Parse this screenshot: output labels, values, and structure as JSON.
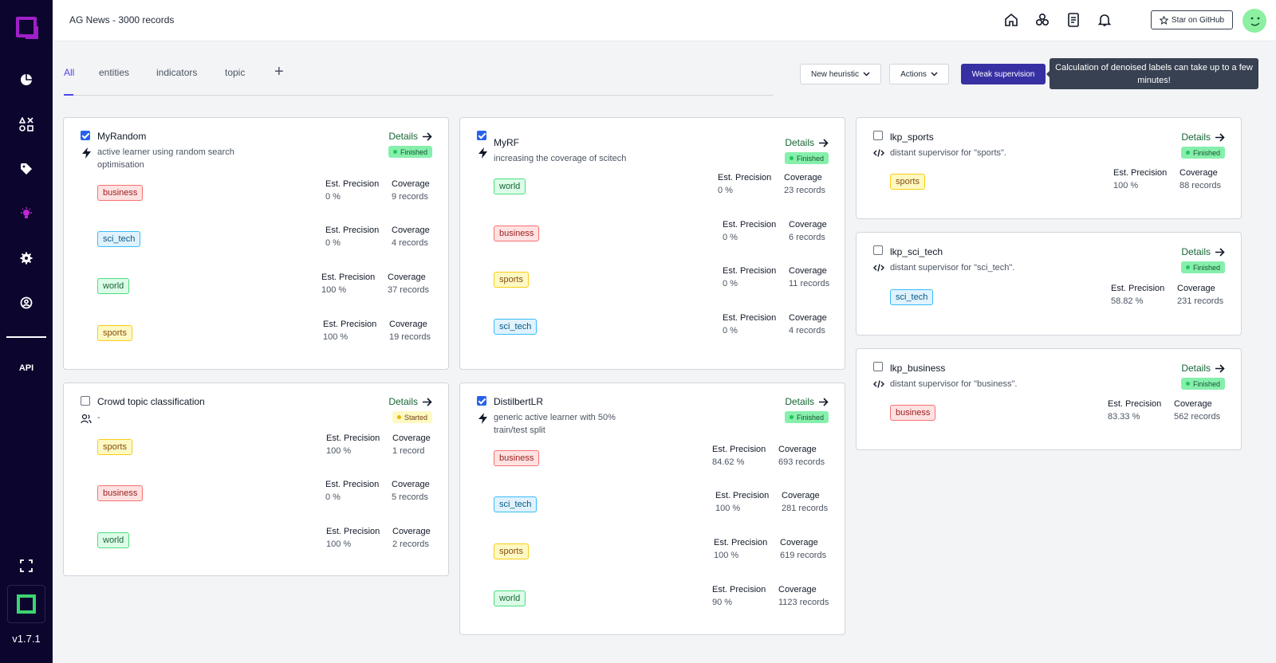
{
  "app": {
    "project_title": "AG News - 3000 records",
    "version": "v1.7.1",
    "api_label": "API",
    "github_label": "Star on GitHub"
  },
  "tabs": [
    {
      "label": "All",
      "active": true
    },
    {
      "label": "entities"
    },
    {
      "label": "indicators"
    },
    {
      "label": "topic"
    }
  ],
  "toolbar": {
    "new_heuristic": "New heuristic",
    "actions": "Actions",
    "weak_supervision": "Weak supervision",
    "tooltip": "Calculation of denoised labels can take up to a few minutes!"
  },
  "metric_labels": {
    "precision": "Est. Precision",
    "coverage": "Coverage"
  },
  "details_label": "Details",
  "colors": {
    "accent": "#3730a3",
    "sidebar": "#0c052e",
    "finished": "#86efac",
    "started": "#fef9c3"
  },
  "cards": [
    {
      "name": "MyRandom",
      "desc": "active learner using random search optimisation",
      "checked": true,
      "icon": "bolt-icon",
      "status": "Finished",
      "labels": [
        {
          "label": "business",
          "precision": "0 %",
          "coverage": "9 records"
        },
        {
          "label": "sci_tech",
          "precision": "0 %",
          "coverage": "4 records"
        },
        {
          "label": "world",
          "precision": "100 %",
          "coverage": "37 records"
        },
        {
          "label": "sports",
          "precision": "100 %",
          "coverage": "19 records"
        }
      ]
    },
    {
      "name": "Crowd topic classification",
      "desc": "-",
      "checked": false,
      "icon": "users-icon",
      "status": "Started",
      "labels": [
        {
          "label": "sports",
          "precision": "100 %",
          "coverage": "1 record"
        },
        {
          "label": "business",
          "precision": "0 %",
          "coverage": "5 records"
        },
        {
          "label": "world",
          "precision": "100 %",
          "coverage": "2 records"
        }
      ]
    },
    {
      "name": "MyRF",
      "desc": "increasing the coverage of scitech",
      "checked": true,
      "icon": "bolt-icon",
      "status": "Finished",
      "labels": [
        {
          "label": "world",
          "precision": "0 %",
          "coverage": "23 records"
        },
        {
          "label": "business",
          "precision": "0 %",
          "coverage": "6 records"
        },
        {
          "label": "sports",
          "precision": "0 %",
          "coverage": "11 records"
        },
        {
          "label": "sci_tech",
          "precision": "0 %",
          "coverage": "4 records"
        }
      ]
    },
    {
      "name": "DistilbertLR",
      "desc": "generic active learner with 50% train/test split",
      "checked": true,
      "icon": "bolt-icon",
      "status": "Finished",
      "labels": [
        {
          "label": "business",
          "precision": "84.62 %",
          "coverage": "693 records"
        },
        {
          "label": "sci_tech",
          "precision": "100 %",
          "coverage": "281 records"
        },
        {
          "label": "sports",
          "precision": "100 %",
          "coverage": "619 records"
        },
        {
          "label": "world",
          "precision": "90 %",
          "coverage": "1123 records"
        }
      ]
    },
    {
      "name": "lkp_sports",
      "desc": "distant supervisor for \"sports\".",
      "checked": false,
      "icon": "code-icon",
      "status": "Finished",
      "labels": [
        {
          "label": "sports",
          "precision": "100 %",
          "coverage": "88 records"
        }
      ]
    },
    {
      "name": "lkp_sci_tech",
      "desc": "distant supervisor for \"sci_tech\".",
      "checked": false,
      "icon": "code-icon",
      "status": "Finished",
      "labels": [
        {
          "label": "sci_tech",
          "precision": "58.82 %",
          "coverage": "231 records"
        }
      ]
    },
    {
      "name": "lkp_business",
      "desc": "distant supervisor for \"business\".",
      "checked": false,
      "icon": "code-icon",
      "status": "Finished",
      "labels": [
        {
          "label": "business",
          "precision": "83.33 %",
          "coverage": "562 records"
        }
      ]
    }
  ]
}
